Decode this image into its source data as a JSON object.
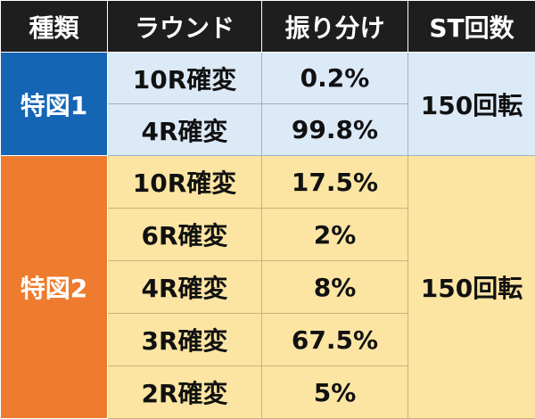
{
  "header": {
    "kind": "種類",
    "round": "ラウンド",
    "distribution": "振り分け",
    "st_count": "ST回数"
  },
  "groups": [
    {
      "kind": "特図1",
      "st": "150回転",
      "color": "#1565b5",
      "body_color": "#dce9f6",
      "rows": [
        {
          "round": "10R確変",
          "pct": "0.2%"
        },
        {
          "round": "4R確変",
          "pct": "99.8%"
        }
      ]
    },
    {
      "kind": "特図2",
      "st": "150回転",
      "color": "#ee7b2e",
      "body_color": "#fce5a3",
      "rows": [
        {
          "round": "10R確変",
          "pct": "17.5%"
        },
        {
          "round": "6R確変",
          "pct": "2%"
        },
        {
          "round": "4R確変",
          "pct": "8%"
        },
        {
          "round": "3R確変",
          "pct": "67.5%"
        },
        {
          "round": "2R確変",
          "pct": "5%"
        }
      ]
    }
  ]
}
